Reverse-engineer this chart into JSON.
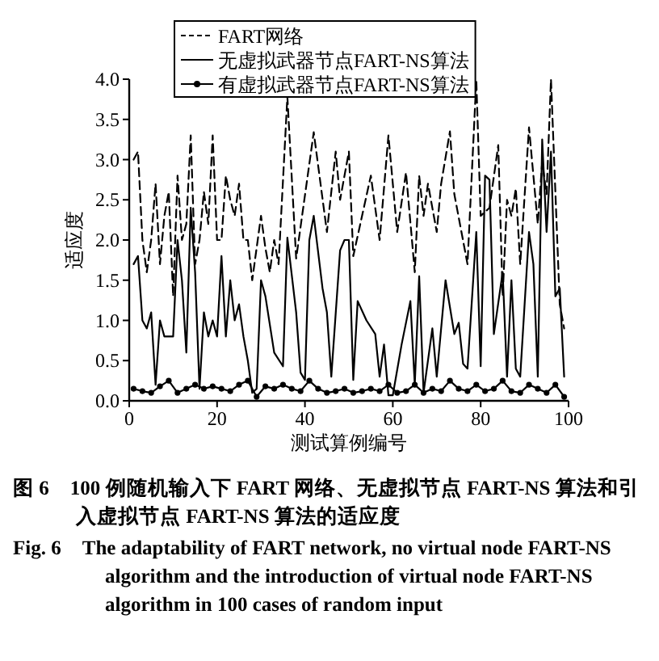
{
  "chart_data": {
    "type": "line",
    "title": "图 6　100 例随机输入下 FART 网络、无虚拟节点 FART-NS 算法和引入虚拟节点 FART-NS 算法的适应度",
    "subtitle": "Fig. 6　The adaptability of FART network, no virtual node FART-NS algorithm and the introduction of virtual node FART-NS algorithm in 100 cases of random input",
    "xlabel": "测试算例编号",
    "ylabel": "适应度",
    "xlim": [
      0,
      100
    ],
    "ylim": [
      0,
      4
    ],
    "xticks": [
      0,
      20,
      40,
      60,
      80,
      100
    ],
    "yticks": [
      {
        "value": 0,
        "label": "0.0"
      },
      {
        "value": 0.5,
        "label": "0.5"
      },
      {
        "value": 1,
        "label": "1.0"
      },
      {
        "value": 1.5,
        "label": "1.5"
      },
      {
        "value": 2,
        "label": "2.0"
      },
      {
        "value": 2.5,
        "label": "2.5"
      },
      {
        "value": 3,
        "label": "3.0"
      },
      {
        "value": 3.5,
        "label": "3.5"
      },
      {
        "value": 4,
        "label": "4.0"
      }
    ],
    "grid": false,
    "legend": "top left",
    "series": [
      {
        "name": "FART网络",
        "color": "#000000",
        "line_style": "dashed",
        "marker": "none",
        "x": [
          1,
          2,
          3,
          4,
          5,
          6,
          7,
          8,
          9,
          10,
          11,
          12,
          13,
          14,
          15,
          16,
          17,
          18,
          19,
          20,
          21,
          22,
          23,
          24,
          25,
          26,
          27,
          28,
          29,
          30,
          31,
          32,
          33,
          34,
          36,
          38,
          42,
          45,
          47,
          48,
          50,
          51,
          55,
          57,
          59,
          61,
          63,
          65,
          66,
          67,
          68,
          70,
          71,
          73,
          74,
          77,
          79,
          80,
          82,
          84,
          85,
          86,
          87,
          88,
          89,
          91,
          93,
          94,
          95,
          96,
          98,
          99
        ],
        "values": [
          3.0,
          3.1,
          2.0,
          1.6,
          2.0,
          2.7,
          1.7,
          2.3,
          2.6,
          1.3,
          2.8,
          2.0,
          2.2,
          3.3,
          1.7,
          2.0,
          2.6,
          2.2,
          3.3,
          2.0,
          2.0,
          2.8,
          2.5,
          2.3,
          2.7,
          2.0,
          2.0,
          1.5,
          1.9,
          2.3,
          1.9,
          1.6,
          2.0,
          1.7,
          3.78,
          1.77,
          3.34,
          2.1,
          3.1,
          2.5,
          3.1,
          1.8,
          2.8,
          2.0,
          3.3,
          2.1,
          2.84,
          1.6,
          2.8,
          2.3,
          2.7,
          2.1,
          2.7,
          3.35,
          2.57,
          1.7,
          3.99,
          2.3,
          2.4,
          3.18,
          1.3,
          2.5,
          2.3,
          2.64,
          1.7,
          3.4,
          2.2,
          2.97,
          2.57,
          4.0,
          1.2,
          0.9
        ]
      },
      {
        "name": "无虚拟武器节点FART-NS算法",
        "color": "#000000",
        "line_style": "solid",
        "marker": "none",
        "x": [
          1,
          2,
          3,
          4,
          5,
          6,
          7,
          8,
          10,
          11,
          12,
          13,
          14,
          15,
          16,
          17,
          18,
          19,
          20,
          21,
          22,
          23,
          24,
          25,
          26,
          27,
          28,
          29,
          30,
          31,
          33,
          35,
          36,
          38,
          39,
          40,
          41,
          42,
          44,
          45,
          46,
          48,
          49,
          50,
          51,
          52,
          54,
          56,
          57,
          58,
          59,
          60,
          62,
          64,
          65,
          66,
          67,
          69,
          70,
          72,
          74,
          75,
          76,
          77,
          79,
          80,
          81,
          82,
          83,
          85,
          86,
          87,
          88,
          89,
          91,
          92,
          93,
          94,
          95,
          96,
          97,
          98,
          99
        ],
        "values": [
          1.7,
          1.8,
          1.0,
          0.9,
          1.1,
          0.2,
          1.0,
          0.8,
          0.8,
          2.0,
          1.5,
          0.6,
          2.4,
          1.6,
          0.15,
          1.1,
          0.8,
          1.0,
          0.8,
          1.8,
          0.8,
          1.5,
          1.0,
          1.2,
          0.8,
          0.5,
          0.1,
          0.15,
          1.5,
          1.3,
          0.6,
          0.43,
          2.03,
          1.1,
          0.35,
          0.26,
          2.0,
          2.3,
          1.4,
          1.1,
          0.3,
          1.87,
          2.0,
          2.0,
          0.26,
          1.24,
          1.0,
          0.83,
          0.3,
          0.7,
          0.07,
          0.07,
          0.7,
          1.24,
          0.2,
          1.55,
          0.1,
          0.9,
          0.3,
          1.5,
          0.83,
          0.97,
          0.46,
          0.4,
          2.1,
          0.43,
          2.8,
          2.75,
          0.83,
          1.6,
          0.3,
          1.5,
          0.4,
          0.3,
          2.1,
          1.7,
          0.3,
          3.25,
          2.1,
          3.1,
          1.3,
          1.4,
          0.3
        ]
      },
      {
        "name": "有虚拟武器节点FART-NS算法",
        "color": "#000000",
        "line_style": "solid",
        "marker": "circle",
        "x": [
          1,
          3,
          5,
          7,
          9,
          11,
          13,
          15,
          17,
          19,
          21,
          23,
          25,
          27,
          29,
          31,
          33,
          35,
          37,
          39,
          41,
          43,
          45,
          47,
          49,
          51,
          53,
          55,
          57,
          59,
          61,
          63,
          65,
          67,
          69,
          71,
          73,
          75,
          77,
          79,
          81,
          83,
          85,
          87,
          89,
          91,
          93,
          95,
          97,
          99
        ],
        "values": [
          0.15,
          0.12,
          0.1,
          0.18,
          0.25,
          0.1,
          0.15,
          0.2,
          0.15,
          0.18,
          0.15,
          0.12,
          0.2,
          0.25,
          0.05,
          0.18,
          0.15,
          0.2,
          0.15,
          0.12,
          0.25,
          0.15,
          0.1,
          0.12,
          0.15,
          0.1,
          0.12,
          0.15,
          0.12,
          0.2,
          0.1,
          0.12,
          0.2,
          0.1,
          0.15,
          0.12,
          0.25,
          0.15,
          0.12,
          0.2,
          0.12,
          0.15,
          0.25,
          0.12,
          0.1,
          0.2,
          0.15,
          0.1,
          0.2,
          0.05
        ]
      }
    ]
  }
}
